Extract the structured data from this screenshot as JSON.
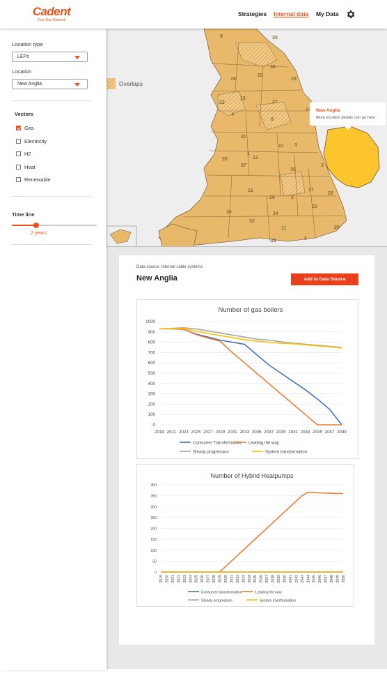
{
  "header": {
    "logo_main": "Cadent",
    "logo_sub": "Your Gas Network",
    "nav": [
      {
        "label": "Strategies",
        "active": false
      },
      {
        "label": "Internal data",
        "active": true
      },
      {
        "label": "My Data",
        "active": false
      }
    ]
  },
  "sidebar": {
    "location_type_label": "Location type",
    "location_type_value": "LEPs",
    "location_label": "Location",
    "location_value": "New Anglia",
    "vectors_title": "Vectors",
    "vectors": [
      {
        "label": "Gas",
        "checked": true
      },
      {
        "label": "Electricity",
        "checked": false
      },
      {
        "label": "H2",
        "checked": false
      },
      {
        "label": "Heat",
        "checked": false
      },
      {
        "label": "Renewable",
        "checked": false
      }
    ],
    "timeline_label": "Time line",
    "timeline_value": "2 years"
  },
  "map": {
    "legend_label": "Overlaps",
    "region_numbers": [
      "8",
      "33",
      "38",
      "20",
      "19",
      "18",
      "15",
      "27",
      "22",
      "4",
      "9",
      "14",
      "31",
      "21",
      "3",
      "1",
      "13",
      "35",
      "37",
      "30",
      "3",
      "12",
      "17",
      "29",
      "26",
      "2",
      "36",
      "34",
      "23",
      "32",
      "11",
      "29",
      "5",
      "28"
    ],
    "tooltip_title": "New Anglia",
    "tooltip_text": "More location details can go here",
    "colors": {
      "region": "#e8b86b",
      "selected": "#fcc52e",
      "border": "#8a6a3a"
    }
  },
  "panel": {
    "source": "Data source: Internal cable systems",
    "title": "New Anglia",
    "add_button": "Add to Data Source"
  },
  "chart_data": [
    {
      "type": "line",
      "title": "Number of gas boilers",
      "x": [
        2019,
        2021,
        2023,
        2025,
        2027,
        2029,
        2031,
        2033,
        2035,
        2037,
        2039,
        2041,
        2043,
        2045,
        2047,
        2049
      ],
      "ylim": [
        0,
        1000
      ],
      "yticks": [
        0,
        100,
        200,
        300,
        400,
        500,
        600,
        700,
        800,
        900,
        1000
      ],
      "series": [
        {
          "name": "Consumer Transformation",
          "color": "#4472c4",
          "values": [
            930,
            930,
            925,
            880,
            850,
            820,
            800,
            780,
            680,
            580,
            500,
            420,
            340,
            250,
            150,
            0
          ]
        },
        {
          "name": "Leading the way",
          "color": "#ed7d31",
          "values": [
            930,
            930,
            925,
            875,
            840,
            810,
            700,
            600,
            500,
            400,
            300,
            200,
            100,
            0,
            0,
            0
          ]
        },
        {
          "name": "Steady progression",
          "color": "#a5a5a5",
          "values": [
            930,
            935,
            940,
            930,
            910,
            890,
            870,
            850,
            830,
            820,
            805,
            790,
            780,
            770,
            760,
            750
          ]
        },
        {
          "name": "System transformation",
          "color": "#ffc000",
          "values": [
            930,
            932,
            935,
            910,
            885,
            865,
            845,
            825,
            810,
            800,
            790,
            785,
            775,
            765,
            755,
            745
          ]
        }
      ]
    },
    {
      "type": "line",
      "title": "Number of Hybrid Heatpumps",
      "x": [
        2019,
        2020,
        2021,
        2022,
        2023,
        2024,
        2025,
        2026,
        2027,
        2028,
        2029,
        2030,
        2031,
        2032,
        2033,
        2034,
        2035,
        2036,
        2037,
        2038,
        2039,
        2040,
        2041,
        2042,
        2043,
        2044,
        2045,
        2046,
        2047,
        2048,
        2049,
        2050
      ],
      "ylim": [
        0,
        400
      ],
      "yticks": [
        0,
        50,
        100,
        150,
        200,
        250,
        300,
        350,
        400
      ],
      "series": [
        {
          "name": "Consumer transformation",
          "color": "#4472c4",
          "values": [
            0,
            0,
            0,
            0,
            0,
            0,
            0,
            0,
            0,
            0,
            0,
            0,
            0,
            0,
            0,
            0,
            0,
            0,
            0,
            0,
            0,
            0,
            0,
            0,
            0,
            0,
            0,
            0,
            0,
            0,
            0,
            0
          ]
        },
        {
          "name": "Leading the way",
          "color": "#ed7d31",
          "values": [
            0,
            0,
            0,
            0,
            0,
            0,
            0,
            0,
            0,
            0,
            0,
            25,
            50,
            75,
            100,
            125,
            150,
            175,
            200,
            225,
            250,
            275,
            300,
            325,
            350,
            365,
            365,
            363,
            362,
            361,
            360,
            360
          ]
        },
        {
          "name": "Steady progression",
          "color": "#a5a5a5",
          "values": [
            0,
            0,
            0,
            0,
            0,
            0,
            0,
            0,
            0,
            0,
            0,
            0,
            0,
            0,
            0,
            0,
            0,
            0,
            0,
            0,
            0,
            0,
            0,
            0,
            0,
            0,
            0,
            0,
            0,
            0,
            0,
            0
          ]
        },
        {
          "name": "System transformation",
          "color": "#ffc000",
          "values": [
            0,
            0,
            0,
            0,
            0,
            0,
            0,
            0,
            0,
            0,
            0,
            0,
            0,
            0,
            0,
            0,
            0,
            0,
            0,
            0,
            0,
            0,
            0,
            0,
            0,
            0,
            0,
            0,
            0,
            0,
            0,
            3
          ]
        }
      ]
    }
  ]
}
